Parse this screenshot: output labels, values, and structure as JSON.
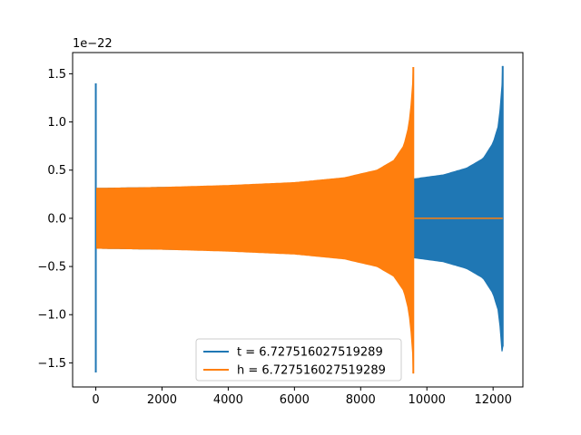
{
  "chart_data": {
    "type": "line",
    "title": "",
    "xlabel": "",
    "ylabel": "",
    "y_offset_label": "1e−22",
    "y_scale": 1e-22,
    "xlim": [
      -700,
      12900
    ],
    "ylim": [
      -1.75,
      1.72
    ],
    "x_ticks": [
      0,
      2000,
      4000,
      6000,
      8000,
      10000,
      12000
    ],
    "x_tick_labels": [
      "0",
      "2000",
      "4000",
      "6000",
      "8000",
      "10000",
      "12000"
    ],
    "y_ticks": [
      -1.5,
      -1.0,
      -0.5,
      0.0,
      0.5,
      1.0,
      1.5
    ],
    "y_tick_labels": [
      "−1.5",
      "−1.0",
      "−0.5",
      "0.0",
      "0.5",
      "1.0",
      "1.5"
    ],
    "grid": false,
    "legend_position": "lower-center",
    "series": [
      {
        "name": "t = 6.727516027519289",
        "color": "#1f77b4",
        "x_start": 0,
        "x_end": 12290,
        "spike_at_start": {
          "x": 0,
          "y_max": 1.4,
          "y_min": -1.6
        },
        "envelope": [
          {
            "x": 30,
            "amp": 0.31
          },
          {
            "x": 2000,
            "amp": 0.32
          },
          {
            "x": 4000,
            "amp": 0.33
          },
          {
            "x": 6000,
            "amp": 0.35
          },
          {
            "x": 8000,
            "amp": 0.37
          },
          {
            "x": 9650,
            "amp": 0.41
          },
          {
            "x": 10500,
            "amp": 0.45
          },
          {
            "x": 11200,
            "amp": 0.52
          },
          {
            "x": 11700,
            "amp": 0.62
          },
          {
            "x": 12000,
            "amp": 0.78
          },
          {
            "x": 12150,
            "amp": 0.95
          },
          {
            "x": 12220,
            "amp": 1.15
          },
          {
            "x": 12270,
            "amp": 1.38
          }
        ],
        "end_peak": {
          "x": 12290,
          "y_max": 1.58,
          "y_min": -1.33
        }
      },
      {
        "name": "h = 6.727516027519289",
        "color": "#ff7f0e",
        "x_start": 0,
        "x_end": 12290,
        "envelope": [
          {
            "x": 30,
            "amp": 0.31
          },
          {
            "x": 2000,
            "amp": 0.32
          },
          {
            "x": 4000,
            "amp": 0.34
          },
          {
            "x": 6000,
            "amp": 0.37
          },
          {
            "x": 7500,
            "amp": 0.42
          },
          {
            "x": 8500,
            "amp": 0.5
          },
          {
            "x": 9000,
            "amp": 0.6
          },
          {
            "x": 9300,
            "amp": 0.75
          },
          {
            "x": 9450,
            "amp": 0.95
          },
          {
            "x": 9530,
            "amp": 1.2
          },
          {
            "x": 9570,
            "amp": 1.4
          }
        ],
        "end_peak": {
          "x": 9590,
          "y_max": 1.57,
          "y_min": -1.61
        },
        "flat_after": {
          "x_from": 9620,
          "x_to": 12290,
          "y": 0.0
        }
      }
    ]
  }
}
